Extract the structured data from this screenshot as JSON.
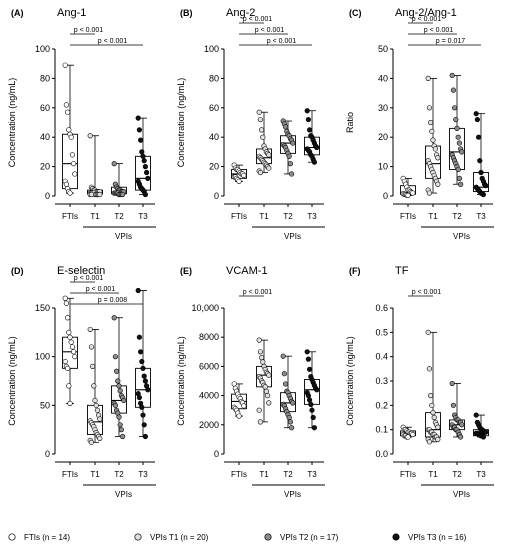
{
  "chart_data": [
    {
      "type": "boxplot",
      "panel_label": "(A)",
      "title": "Ang-1",
      "ylabel": "Concentration (ng/mL)",
      "ylim": [
        0,
        100
      ],
      "yticks": [
        "0",
        "20",
        "40",
        "60",
        "80",
        "100"
      ],
      "ytick_values": [
        0,
        20,
        40,
        60,
        80,
        100
      ],
      "categories": [
        "FTIs",
        "T1",
        "T2",
        "T3"
      ],
      "group_label": "VPIs",
      "boxes": [
        {
          "min": 2,
          "q1": 5,
          "median": 22,
          "q3": 42,
          "max": 89
        },
        {
          "min": 0.5,
          "q1": 1.5,
          "median": 2.5,
          "q3": 4,
          "max": 41
        },
        {
          "min": 0.5,
          "q1": 1.5,
          "median": 2.5,
          "q3": 6,
          "max": 22
        },
        {
          "min": 1,
          "q1": 4,
          "median": 12,
          "q3": 27,
          "max": 53
        }
      ],
      "points": [
        [
          89,
          62,
          57,
          45,
          42,
          40,
          28,
          22,
          15,
          10,
          8,
          5,
          3,
          2
        ],
        [
          41,
          6,
          5,
          4,
          4,
          3,
          3,
          3,
          3,
          2,
          2,
          2,
          2,
          1,
          1,
          1,
          1,
          1,
          1,
          1
        ],
        [
          22,
          8,
          6,
          5,
          4,
          4,
          3,
          3,
          3,
          2,
          2,
          2,
          2,
          1,
          1,
          1,
          1
        ],
        [
          53,
          45,
          38,
          30,
          27,
          24,
          20,
          16,
          12,
          10,
          8,
          6,
          5,
          4,
          3,
          1
        ]
      ],
      "comparisons": [
        {
          "from": 0,
          "to": 3,
          "label": "p < 0.001"
        },
        {
          "from": 0,
          "to": 1,
          "label": "p < 0.001"
        }
      ]
    },
    {
      "type": "boxplot",
      "panel_label": "(B)",
      "title": "Ang-2",
      "ylabel": "Concentration (ng/mL)",
      "ylim": [
        0,
        100
      ],
      "yticks": [
        "0",
        "20",
        "40",
        "60",
        "80",
        "100"
      ],
      "ytick_values": [
        0,
        20,
        40,
        60,
        80,
        100
      ],
      "categories": [
        "FTIs",
        "T1",
        "T2",
        "T3"
      ],
      "group_label": "VPIs",
      "boxes": [
        {
          "min": 10,
          "q1": 12,
          "median": 15,
          "q3": 18,
          "max": 21
        },
        {
          "min": 16,
          "q1": 22,
          "median": 26,
          "q3": 32,
          "max": 57
        },
        {
          "min": 15,
          "q1": 29,
          "median": 36,
          "q3": 41,
          "max": 51
        },
        {
          "min": 23,
          "q1": 28,
          "median": 33,
          "q3": 40,
          "max": 58
        }
      ],
      "points": [
        [
          21,
          19,
          18,
          18,
          17,
          16,
          15,
          15,
          14,
          13,
          13,
          12,
          11,
          10
        ],
        [
          57,
          52,
          45,
          40,
          34,
          32,
          30,
          29,
          28,
          27,
          26,
          25,
          24,
          23,
          22,
          21,
          20,
          19,
          17,
          16
        ],
        [
          51,
          49,
          47,
          44,
          42,
          41,
          39,
          38,
          36,
          35,
          34,
          33,
          31,
          29,
          27,
          22,
          15
        ],
        [
          58,
          52,
          45,
          41,
          40,
          38,
          36,
          34,
          33,
          32,
          31,
          30,
          28,
          27,
          25,
          23
        ]
      ],
      "comparisons": [
        {
          "from": 0,
          "to": 3,
          "label": "p < 0.001"
        },
        {
          "from": 0,
          "to": 2,
          "label": "p < 0.001"
        },
        {
          "from": 0,
          "to": 1,
          "label": "p < 0.001"
        }
      ]
    },
    {
      "type": "boxplot",
      "panel_label": "(C)",
      "title": "Ang-2/Ang-1",
      "ylabel": "Ratio",
      "ylim": [
        0,
        50
      ],
      "yticks": [
        "0",
        "10",
        "20",
        "30",
        "40",
        "50"
      ],
      "ytick_values": [
        0,
        10,
        20,
        30,
        40,
        50
      ],
      "categories": [
        "FTIs",
        "T1",
        "T2",
        "T3"
      ],
      "group_label": "VPIs",
      "boxes": [
        {
          "min": 0.2,
          "q1": 0.6,
          "median": 1.2,
          "q3": 3.5,
          "max": 6
        },
        {
          "min": 1,
          "q1": 6,
          "median": 11,
          "q3": 17,
          "max": 40
        },
        {
          "min": 4,
          "q1": 9,
          "median": 15,
          "q3": 23,
          "max": 41
        },
        {
          "min": 0.5,
          "q1": 1.5,
          "median": 3,
          "q3": 8,
          "max": 28
        }
      ],
      "points": [
        [
          6,
          5,
          4,
          3,
          2,
          2,
          1.5,
          1.2,
          1,
          0.8,
          0.6,
          0.5,
          0.3,
          0.2
        ],
        [
          40,
          30,
          25,
          22,
          19,
          17,
          16,
          14,
          13,
          12,
          11,
          10,
          9,
          8,
          7,
          6,
          5,
          4,
          2,
          1
        ],
        [
          41,
          36,
          30,
          26,
          23,
          20,
          18,
          16,
          15,
          14,
          13,
          12,
          11,
          10,
          9,
          6,
          4
        ],
        [
          28,
          26,
          20,
          12,
          8,
          6,
          5,
          4,
          3.5,
          3,
          2.5,
          2,
          1.5,
          1,
          0.8,
          0.5
        ]
      ],
      "comparisons": [
        {
          "from": 0,
          "to": 3,
          "label": "p = 0.017"
        },
        {
          "from": 0,
          "to": 2,
          "label": "p < 0.001"
        },
        {
          "from": 0,
          "to": 1,
          "label": "p < 0.001"
        }
      ]
    },
    {
      "type": "boxplot",
      "panel_label": "(D)",
      "title": "E-selectin",
      "ylabel": "Concentration (ng/mL)",
      "ylim": [
        0,
        150
      ],
      "yticks": [
        "0",
        "50",
        "100",
        "150"
      ],
      "ytick_values": [
        0,
        50,
        100,
        150
      ],
      "categories": [
        "FTIs",
        "T1",
        "T2",
        "T3"
      ],
      "group_label": "VPIs",
      "boxes": [
        {
          "min": 52,
          "q1": 88,
          "median": 105,
          "q3": 120,
          "max": 160
        },
        {
          "min": 12,
          "q1": 20,
          "median": 33,
          "q3": 50,
          "max": 128
        },
        {
          "min": 18,
          "q1": 42,
          "median": 55,
          "q3": 70,
          "max": 140
        },
        {
          "min": 18,
          "q1": 48,
          "median": 66,
          "q3": 88,
          "max": 168
        }
      ],
      "points": [
        [
          160,
          155,
          140,
          125,
          120,
          115,
          110,
          105,
          100,
          95,
          90,
          88,
          70,
          52
        ],
        [
          128,
          110,
          90,
          70,
          55,
          50,
          45,
          40,
          36,
          34,
          32,
          30,
          28,
          25,
          22,
          20,
          18,
          16,
          14,
          12
        ],
        [
          140,
          100,
          85,
          75,
          70,
          65,
          60,
          58,
          55,
          52,
          50,
          45,
          42,
          38,
          30,
          25,
          18
        ],
        [
          168,
          120,
          105,
          95,
          88,
          80,
          75,
          70,
          66,
          62,
          58,
          52,
          48,
          40,
          30,
          18
        ]
      ],
      "comparisons": [
        {
          "from": 0,
          "to": 3,
          "label": "p = 0.008"
        },
        {
          "from": 0,
          "to": 2,
          "label": "p < 0.001"
        },
        {
          "from": 0,
          "to": 1,
          "label": "p < 0.001"
        }
      ]
    },
    {
      "type": "boxplot",
      "panel_label": "(E)",
      "title": "VCAM-1",
      "ylabel": "Concentration (ng/mL)",
      "ylim": [
        0,
        10000
      ],
      "yticks": [
        "0",
        "2000",
        "4000",
        "6000",
        "8000",
        "10,000"
      ],
      "ytick_values": [
        0,
        2000,
        4000,
        6000,
        8000,
        10000
      ],
      "categories": [
        "FTIs",
        "T1",
        "T2",
        "T3"
      ],
      "group_label": "VPIs",
      "boxes": [
        {
          "min": 2600,
          "q1": 3100,
          "median": 3600,
          "q3": 4100,
          "max": 4800
        },
        {
          "min": 2200,
          "q1": 4600,
          "median": 5400,
          "q3": 6000,
          "max": 7800
        },
        {
          "min": 1800,
          "q1": 2900,
          "median": 3500,
          "q3": 4200,
          "max": 6700
        },
        {
          "min": 1800,
          "q1": 3400,
          "median": 4400,
          "q3": 5100,
          "max": 7000
        }
      ],
      "points": [
        [
          4800,
          4500,
          4300,
          4100,
          3900,
          3800,
          3600,
          3500,
          3300,
          3200,
          3100,
          3000,
          2800,
          2600
        ],
        [
          7800,
          7000,
          6600,
          6300,
          6000,
          5800,
          5600,
          5500,
          5400,
          5300,
          5200,
          5000,
          4900,
          4700,
          4600,
          4300,
          4000,
          3500,
          3000,
          2200
        ],
        [
          6700,
          5500,
          4800,
          4300,
          4200,
          4000,
          3800,
          3600,
          3500,
          3400,
          3300,
          3100,
          2900,
          2700,
          2500,
          2200,
          1800
        ],
        [
          7000,
          6500,
          5800,
          5300,
          5100,
          4900,
          4700,
          4500,
          4400,
          4200,
          4000,
          3700,
          3400,
          3000,
          2500,
          1800
        ]
      ],
      "comparisons": [
        {
          "from": 0,
          "to": 1,
          "label": "p < 0.001"
        }
      ]
    },
    {
      "type": "boxplot",
      "panel_label": "(F)",
      "title": "TF",
      "ylabel": "Concentration (ng/mL)",
      "ylim": [
        0,
        0.6
      ],
      "yticks": [
        "0.0",
        "0.1",
        "0.2",
        "0.3",
        "0.4",
        "0.5",
        "0.6"
      ],
      "ytick_values": [
        0,
        0.1,
        0.2,
        0.3,
        0.4,
        0.5,
        0.6
      ],
      "categories": [
        "FTIs",
        "T1",
        "T2",
        "T3"
      ],
      "group_label": "VPIs",
      "boxes": [
        {
          "min": 0.07,
          "q1": 0.075,
          "median": 0.085,
          "q3": 0.095,
          "max": 0.11
        },
        {
          "min": 0.05,
          "q1": 0.07,
          "median": 0.1,
          "q3": 0.17,
          "max": 0.5
        },
        {
          "min": 0.07,
          "q1": 0.1,
          "median": 0.12,
          "q3": 0.14,
          "max": 0.29
        },
        {
          "min": 0.07,
          "q1": 0.075,
          "median": 0.085,
          "q3": 0.1,
          "max": 0.16
        }
      ],
      "points": [
        [
          0.11,
          0.1,
          0.1,
          0.095,
          0.09,
          0.09,
          0.085,
          0.085,
          0.08,
          0.08,
          0.075,
          0.075,
          0.07,
          0.07
        ],
        [
          0.5,
          0.35,
          0.24,
          0.2,
          0.17,
          0.15,
          0.13,
          0.12,
          0.11,
          0.1,
          0.1,
          0.09,
          0.09,
          0.08,
          0.08,
          0.07,
          0.07,
          0.06,
          0.06,
          0.05
        ],
        [
          0.29,
          0.2,
          0.16,
          0.15,
          0.14,
          0.14,
          0.13,
          0.13,
          0.12,
          0.12,
          0.11,
          0.11,
          0.1,
          0.1,
          0.09,
          0.08,
          0.07
        ],
        [
          0.16,
          0.13,
          0.12,
          0.11,
          0.1,
          0.1,
          0.095,
          0.09,
          0.09,
          0.085,
          0.085,
          0.08,
          0.08,
          0.075,
          0.075,
          0.07
        ]
      ],
      "comparisons": [
        {
          "from": 0,
          "to": 1,
          "label": "p < 0.001"
        }
      ]
    }
  ],
  "legend": [
    {
      "label": "FTIs (n = 14)",
      "fill": "#ffffff"
    },
    {
      "label": "VPIs T1 (n = 20)",
      "fill": "#e0e0e0"
    },
    {
      "label": "VPIs T2 (n = 17)",
      "fill": "#8c8c8c"
    },
    {
      "label": "VPIs T3 (n = 16)",
      "fill": "#111111"
    }
  ],
  "colors": {
    "group_fills": [
      "#ffffff",
      "#e0e0e0",
      "#8c8c8c",
      "#111111"
    ],
    "axis": "#000000"
  }
}
